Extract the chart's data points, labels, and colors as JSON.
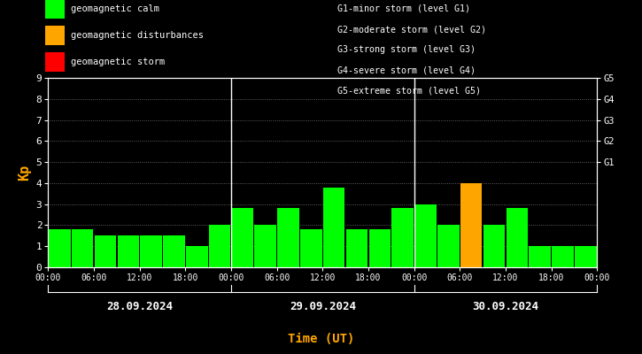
{
  "background_color": "#000000",
  "plot_bg_color": "#000000",
  "bar_color_green": "#00ff00",
  "bar_color_orange": "#ffa500",
  "bar_color_red": "#ff0000",
  "text_color": "#ffffff",
  "orange_text_color": "#ffa500",
  "kp_values_day1": [
    1.8,
    1.8,
    1.5,
    1.5,
    1.5,
    1.5,
    1.0,
    2.0
  ],
  "kp_values_day2": [
    2.8,
    2.0,
    2.8,
    1.8,
    3.8,
    1.8,
    1.8,
    2.8
  ],
  "kp_values_day3": [
    3.0,
    2.0,
    4.0,
    2.0,
    2.8,
    1.0,
    1.0,
    1.0
  ],
  "kp_colors_day1": [
    "green",
    "green",
    "green",
    "green",
    "green",
    "green",
    "green",
    "green"
  ],
  "kp_colors_day2": [
    "green",
    "green",
    "green",
    "green",
    "green",
    "green",
    "green",
    "green"
  ],
  "kp_colors_day3": [
    "green",
    "green",
    "orange",
    "green",
    "green",
    "green",
    "green",
    "green"
  ],
  "day1_label": "28.09.2024",
  "day2_label": "29.09.2024",
  "day3_label": "30.09.2024",
  "xlabel": "Time (UT)",
  "ylabel": "Kp",
  "ylim": [
    0,
    9
  ],
  "yticks": [
    0,
    1,
    2,
    3,
    4,
    5,
    6,
    7,
    8,
    9
  ],
  "right_labels": [
    [
      "G5",
      9.0
    ],
    [
      "G4",
      8.0
    ],
    [
      "G3",
      7.0
    ],
    [
      "G2",
      6.0
    ],
    [
      "G1",
      5.0
    ]
  ],
  "legend_items": [
    {
      "label": "geomagnetic calm",
      "color": "#00ff00"
    },
    {
      "label": "geomagnetic disturbances",
      "color": "#ffa500"
    },
    {
      "label": "geomagnetic storm",
      "color": "#ff0000"
    }
  ],
  "right_legend": [
    "G1-minor storm (level G1)",
    "G2-moderate storm (level G2)",
    "G3-strong storm (level G3)",
    "G4-severe storm (level G4)",
    "G5-extreme storm (level G5)"
  ]
}
